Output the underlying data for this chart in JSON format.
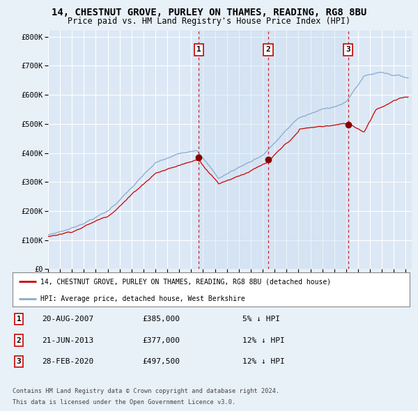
{
  "title": "14, CHESTNUT GROVE, PURLEY ON THAMES, READING, RG8 8BU",
  "subtitle": "Price paid vs. HM Land Registry's House Price Index (HPI)",
  "bg_color": "#e8f0f8",
  "plot_bg": "#dce8f5",
  "shade_color": "#c8dcf0",
  "grid_color": "#ffffff",
  "ytick_values": [
    0,
    100000,
    200000,
    300000,
    400000,
    500000,
    600000,
    700000,
    800000
  ],
  "ylim": [
    0,
    820000
  ],
  "xlim_start": 1995.0,
  "xlim_end": 2025.5,
  "sale_dates": [
    2007.64,
    2013.47,
    2020.16
  ],
  "sale_prices": [
    385000,
    377000,
    497500
  ],
  "sale_labels": [
    "1",
    "2",
    "3"
  ],
  "vline_color": "#cc0000",
  "dot_color": "#880000",
  "red_line_color": "#cc0000",
  "blue_line_color": "#88aacc",
  "legend_red_label": "14, CHESTNUT GROVE, PURLEY ON THAMES, READING, RG8 8BU (detached house)",
  "legend_blue_label": "HPI: Average price, detached house, West Berkshire",
  "footer1": "Contains HM Land Registry data © Crown copyright and database right 2024.",
  "footer2": "This data is licensed under the Open Government Licence v3.0.",
  "table_rows": [
    [
      "1",
      "20-AUG-2007",
      "£385,000",
      "5% ↓ HPI"
    ],
    [
      "2",
      "21-JUN-2013",
      "£377,000",
      "12% ↓ HPI"
    ],
    [
      "3",
      "28-FEB-2020",
      "£497,500",
      "12% ↓ HPI"
    ]
  ]
}
